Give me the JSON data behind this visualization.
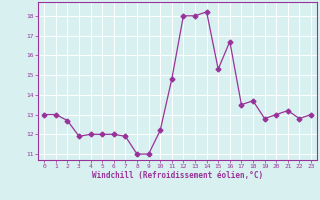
{
  "x": [
    0,
    1,
    2,
    3,
    4,
    5,
    6,
    7,
    8,
    9,
    10,
    11,
    12,
    13,
    14,
    15,
    16,
    17,
    18,
    19,
    20,
    21,
    22,
    23
  ],
  "y": [
    13,
    13,
    12.7,
    11.9,
    12,
    12,
    12,
    11.9,
    11,
    11,
    12.2,
    14.8,
    18,
    18,
    18.2,
    15.3,
    16.7,
    13.5,
    13.7,
    12.8,
    13,
    13.2,
    12.8,
    13
  ],
  "line_color": "#993399",
  "marker": "D",
  "marker_size": 2.5,
  "bg_color": "#d8f0f0",
  "grid_color": "#ffffff",
  "xlabel": "Windchill (Refroidissement éolien,°C)",
  "xlabel_color": "#993399",
  "tick_color": "#993399",
  "ylim": [
    10.7,
    18.7
  ],
  "xlim": [
    -0.5,
    23.5
  ],
  "yticks": [
    11,
    12,
    13,
    14,
    15,
    16,
    17,
    18
  ],
  "xticks": [
    0,
    1,
    2,
    3,
    4,
    5,
    6,
    7,
    8,
    9,
    10,
    11,
    12,
    13,
    14,
    15,
    16,
    17,
    18,
    19,
    20,
    21,
    22,
    23
  ]
}
